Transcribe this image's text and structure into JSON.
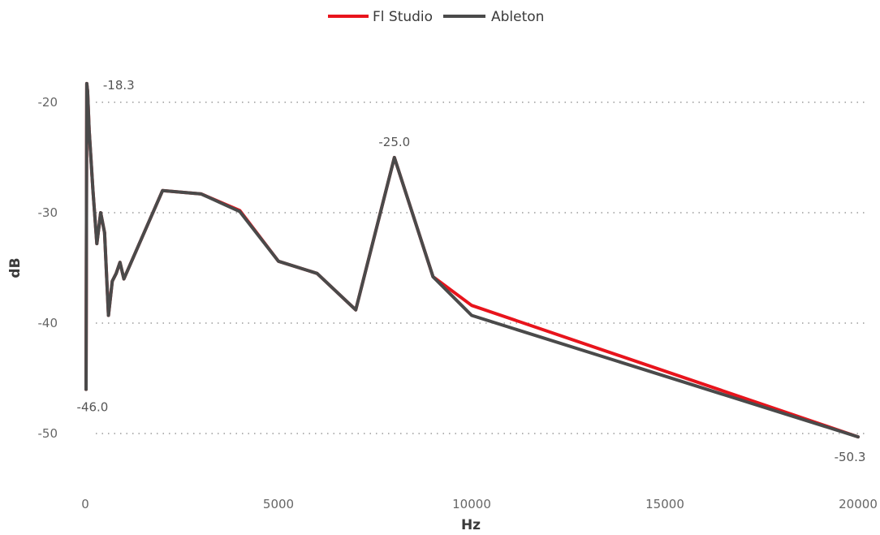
{
  "chart_data": {
    "type": "line",
    "xlabel": "Hz",
    "ylabel": "dB",
    "xlim": [
      0,
      20000
    ],
    "ylim": [
      -55,
      -17.5
    ],
    "xticks": [
      0,
      5000,
      10000,
      15000,
      20000
    ],
    "yticks": [
      -20,
      -30,
      -40,
      -50
    ],
    "grid": "horizontal dotted",
    "legend_position": "top-center",
    "series": [
      {
        "name": "Fl Studio",
        "color": "#e8141c",
        "x": [
          20,
          40,
          60,
          100,
          200,
          300,
          400,
          500,
          600,
          700,
          800,
          900,
          1000,
          2000,
          3000,
          4000,
          5000,
          6000,
          7000,
          8000,
          9000,
          10000,
          20000
        ],
        "y": [
          -46.0,
          -18.3,
          -19.0,
          -22.5,
          -28.0,
          -32.8,
          -30.0,
          -31.8,
          -39.3,
          -36.2,
          -35.5,
          -34.5,
          -36.0,
          -28.0,
          -28.3,
          -29.8,
          -34.4,
          -35.5,
          -38.8,
          -25.0,
          -35.8,
          -38.4,
          -50.3
        ]
      },
      {
        "name": "Ableton",
        "color": "#4a4a4a",
        "x": [
          20,
          40,
          60,
          100,
          200,
          300,
          400,
          500,
          600,
          700,
          800,
          900,
          1000,
          2000,
          3000,
          4000,
          5000,
          6000,
          7000,
          8000,
          9000,
          10000,
          20000
        ],
        "y": [
          -46.0,
          -18.3,
          -19.0,
          -22.5,
          -28.0,
          -32.8,
          -30.0,
          -31.8,
          -39.3,
          -36.2,
          -35.5,
          -34.5,
          -36.0,
          -28.0,
          -28.3,
          -29.9,
          -34.4,
          -35.5,
          -38.8,
          -25.0,
          -35.8,
          -39.3,
          -50.3
        ]
      }
    ],
    "annotations": [
      {
        "text": "-18.3",
        "x": 40,
        "y": -18.3
      },
      {
        "text": "-46.0",
        "x": 20,
        "y": -46.0
      },
      {
        "text": "-25.0",
        "x": 8000,
        "y": -25.0
      },
      {
        "text": "-50.3",
        "x": 20000,
        "y": -50.3
      }
    ]
  }
}
